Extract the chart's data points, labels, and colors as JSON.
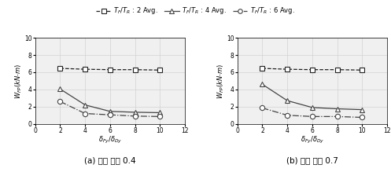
{
  "subplot_a": {
    "subtitle": "(a) 내력 비율 0.4",
    "series": [
      {
        "label": "$T_F/T_R$ : 2 Avg.",
        "x": [
          2,
          4,
          6,
          8,
          10
        ],
        "y": [
          6.45,
          6.35,
          6.3,
          6.3,
          6.25
        ],
        "marker": "s",
        "linestyle": "--",
        "color": "#222222"
      },
      {
        "label": "$T_F/T_R$ : 4 Avg.",
        "x": [
          2,
          4,
          6,
          8,
          10
        ],
        "y": [
          4.05,
          2.2,
          1.45,
          1.35,
          1.3
        ],
        "marker": "^",
        "linestyle": "-",
        "color": "#444444"
      },
      {
        "label": "$T_F/T_R$ : 6 Avg.",
        "x": [
          2,
          4,
          6,
          8,
          10
        ],
        "y": [
          2.6,
          1.2,
          1.05,
          0.9,
          0.85
        ],
        "marker": "o",
        "linestyle": "-.",
        "color": "#444444"
      }
    ],
    "xlabel": "$\\delta_{Fy}/\\delta_{Dy}$",
    "ylabel": "$W_{FP}(kN{\\cdot}m)$",
    "xlim": [
      0,
      12
    ],
    "ylim": [
      0,
      10
    ],
    "xticks": [
      0,
      2,
      4,
      6,
      8,
      10,
      12
    ],
    "yticks": [
      0,
      2,
      4,
      6,
      8,
      10
    ]
  },
  "subplot_b": {
    "subtitle": "(b) 내력 비율 0.7",
    "series": [
      {
        "label": "$T_F/T_R$ : 2 Avg.",
        "x": [
          2,
          4,
          6,
          8,
          10
        ],
        "y": [
          6.45,
          6.35,
          6.3,
          6.3,
          6.25
        ],
        "marker": "s",
        "linestyle": "--",
        "color": "#222222"
      },
      {
        "label": "$T_F/T_R$ : 4 Avg.",
        "x": [
          2,
          4,
          6,
          8,
          10
        ],
        "y": [
          4.6,
          2.7,
          1.9,
          1.75,
          1.65
        ],
        "marker": "^",
        "linestyle": "-",
        "color": "#444444"
      },
      {
        "label": "$T_F/T_R$ : 6 Avg.",
        "x": [
          2,
          4,
          6,
          8,
          10
        ],
        "y": [
          1.85,
          1.0,
          0.85,
          0.85,
          0.75
        ],
        "marker": "o",
        "linestyle": "-.",
        "color": "#444444"
      }
    ],
    "xlabel": "$\\delta_{Fy}/\\delta_{Dy}$",
    "ylabel": "$W_{FP}(kN{\\cdot}m)$",
    "xlim": [
      0,
      12
    ],
    "ylim": [
      0,
      10
    ],
    "xticks": [
      0,
      2,
      4,
      6,
      8,
      10,
      12
    ],
    "yticks": [
      0,
      2,
      4,
      6,
      8,
      10
    ]
  },
  "figsize": [
    4.97,
    2.19
  ],
  "dpi": 100,
  "bg_color": "#f0f0f0",
  "grid_color": "#cccccc"
}
